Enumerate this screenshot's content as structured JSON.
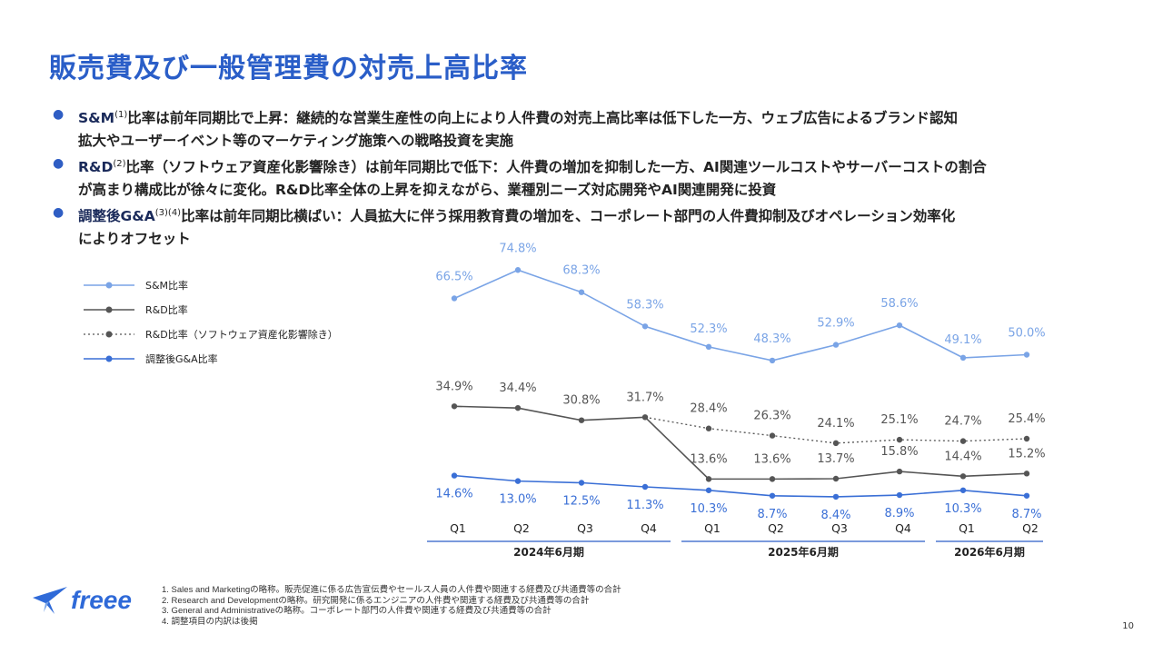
{
  "title": "販売費及び一般管理費の対売上高比率",
  "bullets": [
    {
      "keyword": "S&M",
      "sup": "(1)",
      "line1": "比率は前年同期比で上昇：継続的な営業生産性の向上により人件費の対売上高比率は低下した一方、ウェブ広告によるブランド認知",
      "line2": "拡大やユーザーイベント等のマーケティング施策への戦略投資を実施"
    },
    {
      "keyword": "R&D",
      "sup": "(2)",
      "line1": "比率（ソフトウェア資産化影響除き）は前年同期比で低下：人件費の増加を抑制した一方、AI関連ツールコストやサーバーコストの割合",
      "line2": "が高まり構成比が徐々に変化。R&D比率全体の上昇を抑えながら、業種別ニーズ対応開発やAI関連開発に投資"
    },
    {
      "keyword": "調整後G&A",
      "sup": "(3)(4)",
      "line1": "比率は前年同期比横ばい：人員拡大に伴う採用教育費の増加を、コーポレート部門の人件費抑制及びオペレーション効率化",
      "line2": "によりオフセット"
    }
  ],
  "legend": [
    "S&M比率",
    "R&D比率",
    "R&D比率（ソフトウェア資産化影響除き）",
    "調整後G&A比率"
  ],
  "colors": {
    "sm": "#7aa4e6",
    "rd": "#555555",
    "rd_ex": "#555555",
    "ga": "#3a6fd6",
    "title": "#2a5ec8",
    "axis": "#2a5ec8"
  },
  "chart_data": {
    "type": "line",
    "categories": [
      "Q1",
      "Q2",
      "Q3",
      "Q4",
      "Q1",
      "Q2",
      "Q3",
      "Q4",
      "Q1",
      "Q2"
    ],
    "periods": [
      {
        "label": "2024年6月期",
        "start": 0,
        "end": 3
      },
      {
        "label": "2025年6月期",
        "start": 4,
        "end": 7
      },
      {
        "label": "2026年6月期",
        "start": 8,
        "end": 9
      }
    ],
    "series": [
      {
        "name": "S&M比率",
        "key": "sm",
        "values": [
          66.5,
          74.8,
          68.3,
          58.3,
          52.3,
          48.3,
          52.9,
          58.6,
          49.1,
          50.0
        ]
      },
      {
        "name": "R&D比率",
        "key": "rd",
        "values": [
          34.9,
          34.4,
          30.8,
          31.7,
          13.6,
          13.6,
          13.7,
          15.8,
          14.4,
          15.2
        ]
      },
      {
        "name": "R&D比率（ソフトウェア資産化影響除き）",
        "key": "rd_ex",
        "values": [
          null,
          null,
          null,
          31.7,
          28.4,
          26.3,
          24.1,
          25.1,
          24.7,
          25.4
        ]
      },
      {
        "name": "調整後G&A比率",
        "key": "ga",
        "values": [
          14.6,
          13.0,
          12.5,
          11.3,
          10.3,
          8.7,
          8.4,
          8.9,
          10.3,
          8.7
        ]
      }
    ],
    "unit": "%"
  },
  "footnotes": [
    "1.  Sales and Marketingの略称。販売促進に係る広告宣伝費やセールス人員の人件費や関連する経費及び共通費等の合計",
    "2.  Research and Developmentの略称。研究開発に係るエンジニアの人件費や関連する経費及び共通費等の合計",
    "3.  General and Administrativeの略称。コーポレート部門の人件費や関連する経費及び共通費等の合計",
    "4.  調整項目の内訳は後掲"
  ],
  "logo_text": "freee",
  "page_number": "10"
}
